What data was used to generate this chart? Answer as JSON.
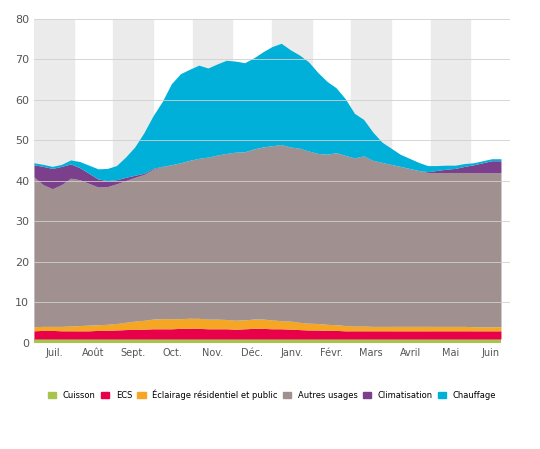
{
  "months": [
    "Juil.",
    "Août",
    "Sept.",
    "Oct.",
    "Nov.",
    "Déc.",
    "Janv.",
    "Févr.",
    "Mars",
    "Avril",
    "Mai",
    "Juin"
  ],
  "month_positions": [
    0,
    4.33,
    8.67,
    13,
    17.33,
    21.67,
    26,
    30.33,
    34.67,
    39,
    43.33,
    47.67
  ],
  "n_weeks": 52,
  "cuisson": [
    1.0,
    1.0,
    1.0,
    1.0,
    1.0,
    1.0,
    1.0,
    1.0,
    1.0,
    1.0,
    1.0,
    1.0,
    1.0,
    1.0,
    1.0,
    1.0,
    1.0,
    1.0,
    1.0,
    1.0,
    1.0,
    1.0,
    1.0,
    1.0,
    1.0,
    1.0,
    1.0,
    1.0,
    1.0,
    1.0,
    1.0,
    1.0,
    1.0,
    1.0,
    1.0,
    1.0,
    1.0,
    1.0,
    1.0,
    1.0,
    1.0,
    1.0,
    1.0,
    1.0,
    1.0,
    1.0,
    1.0,
    1.0,
    1.0,
    1.0,
    1.0,
    1.0
  ],
  "ecs": [
    2.0,
    2.1,
    2.1,
    2.0,
    2.0,
    2.0,
    2.0,
    2.1,
    2.1,
    2.2,
    2.3,
    2.4,
    2.4,
    2.5,
    2.5,
    2.5,
    2.6,
    2.6,
    2.6,
    2.5,
    2.5,
    2.5,
    2.4,
    2.5,
    2.6,
    2.6,
    2.5,
    2.5,
    2.4,
    2.3,
    2.2,
    2.2,
    2.1,
    2.1,
    2.0,
    2.0,
    2.0,
    2.0,
    2.0,
    2.0,
    2.0,
    2.0,
    2.0,
    2.0,
    2.0,
    2.0,
    2.0,
    2.0,
    2.0,
    2.0,
    2.0,
    2.0
  ],
  "eclairage": [
    1.0,
    1.0,
    1.0,
    1.1,
    1.2,
    1.3,
    1.4,
    1.4,
    1.5,
    1.6,
    1.8,
    2.0,
    2.2,
    2.4,
    2.5,
    2.5,
    2.4,
    2.5,
    2.5,
    2.4,
    2.4,
    2.3,
    2.2,
    2.2,
    2.3,
    2.3,
    2.2,
    2.0,
    2.0,
    1.8,
    1.7,
    1.6,
    1.5,
    1.4,
    1.3,
    1.2,
    1.2,
    1.1,
    1.1,
    1.1,
    1.1,
    1.1,
    1.1,
    1.1,
    1.1,
    1.1,
    1.1,
    1.1,
    1.0,
    1.0,
    1.0,
    1.0
  ],
  "autres": [
    37.0,
    35.0,
    34.0,
    35.0,
    36.5,
    36.0,
    35.0,
    34.0,
    34.0,
    34.5,
    35.0,
    35.5,
    36.0,
    37.0,
    37.5,
    38.0,
    38.5,
    39.0,
    39.5,
    40.0,
    40.5,
    41.0,
    41.5,
    41.5,
    42.0,
    42.5,
    43.0,
    43.5,
    43.0,
    43.0,
    42.5,
    42.0,
    42.0,
    42.5,
    42.0,
    41.5,
    42.0,
    41.0,
    40.5,
    40.0,
    39.5,
    39.0,
    38.5,
    38.0,
    38.0,
    38.0,
    38.0,
    38.0,
    38.0,
    38.0,
    38.0,
    38.0
  ],
  "climatisation": [
    3.0,
    4.5,
    5.0,
    4.5,
    3.5,
    3.0,
    2.5,
    2.0,
    1.5,
    1.0,
    0.8,
    0.5,
    0.3,
    0.2,
    0.1,
    0.0,
    0.0,
    0.0,
    0.0,
    0.0,
    0.0,
    0.0,
    0.0,
    0.0,
    0.0,
    0.0,
    0.0,
    0.0,
    0.0,
    0.0,
    0.0,
    0.0,
    0.0,
    0.0,
    0.0,
    0.0,
    0.0,
    0.0,
    0.0,
    0.0,
    0.0,
    0.0,
    0.0,
    0.2,
    0.5,
    0.8,
    1.0,
    1.5,
    2.0,
    2.5,
    3.0,
    3.0
  ],
  "chauffage": [
    0.5,
    0.5,
    0.5,
    0.5,
    1.0,
    1.5,
    2.0,
    2.5,
    3.0,
    3.5,
    5.0,
    7.0,
    10.0,
    13.0,
    16.0,
    20.0,
    22.0,
    22.5,
    23.0,
    22.0,
    22.5,
    23.0,
    22.5,
    22.0,
    22.5,
    23.5,
    24.5,
    25.0,
    24.0,
    23.0,
    22.0,
    20.0,
    18.0,
    16.0,
    14.0,
    11.0,
    9.0,
    7.0,
    5.0,
    4.0,
    3.0,
    2.5,
    2.0,
    1.5,
    1.2,
    1.0,
    0.8,
    0.7,
    0.5,
    0.5,
    0.5,
    0.5
  ],
  "colors": {
    "cuisson": "#a8c44e",
    "ecs": "#e8004a",
    "eclairage": "#f5a623",
    "autres": "#a09090",
    "climatisation": "#7b3f8c",
    "chauffage": "#00b0d8"
  },
  "labels": {
    "cuisson": "Cuisson",
    "ecs": "ECS",
    "eclairage": "Éclairage résidentiel et public",
    "autres": "Autres usages",
    "climatisation": "Climatisation",
    "chauffage": "Chauffage"
  },
  "ylim": [
    0,
    80
  ],
  "yticks": [
    0,
    10,
    20,
    30,
    40,
    50,
    60,
    70,
    80
  ],
  "background_color": "#ffffff",
  "stripe_color": "#ebebeb",
  "grid_color": "#d0d0d0",
  "figsize": [
    5.4,
    4.49
  ],
  "dpi": 100
}
